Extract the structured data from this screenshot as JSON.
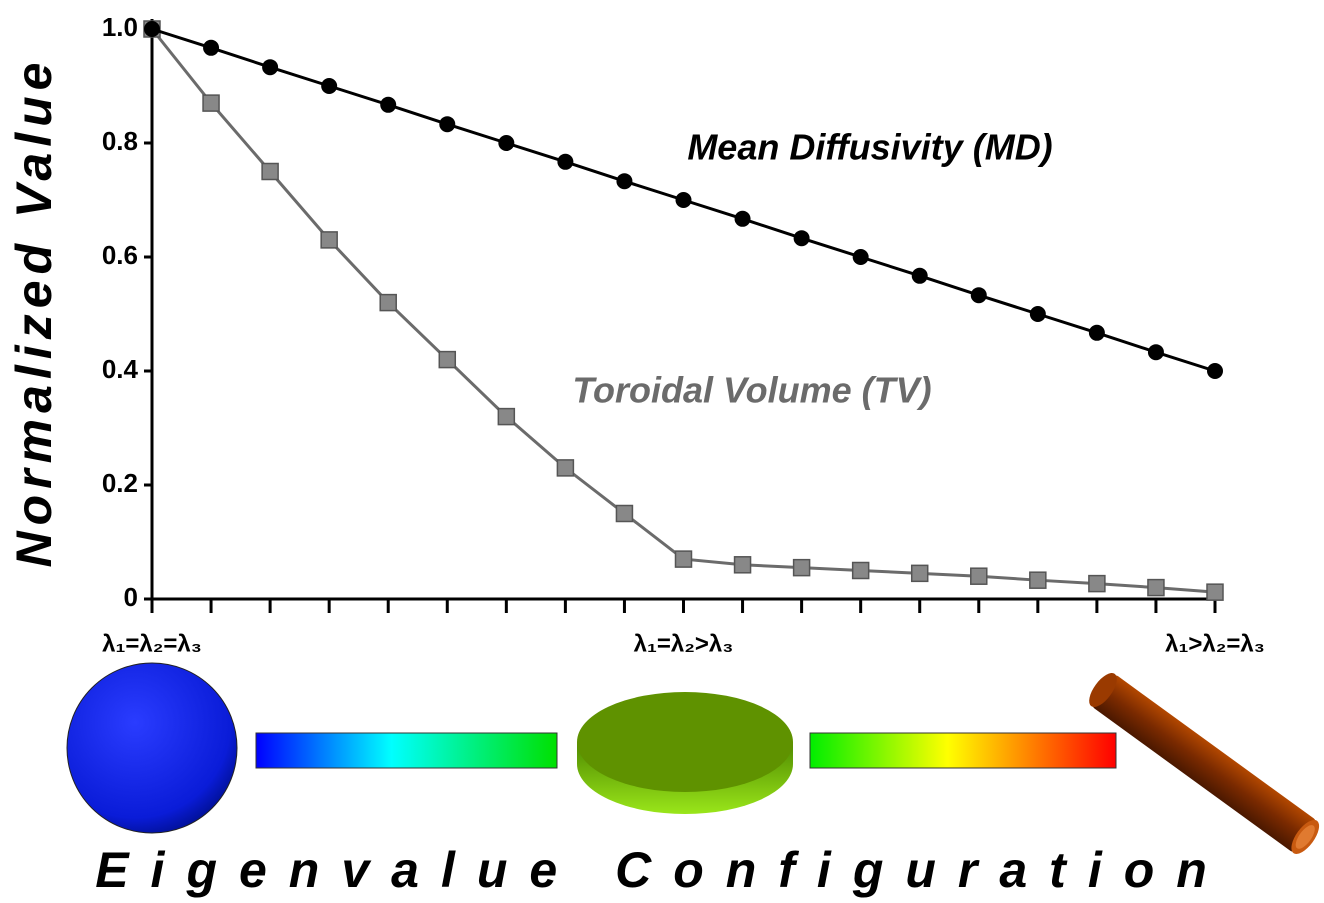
{
  "chart_data": {
    "type": "line",
    "y_label": "Normalized Value",
    "x_label": "Eigenvalue Configuration",
    "categories": [
      "λ₁=λ₂=λ₃",
      null,
      null,
      null,
      null,
      null,
      null,
      null,
      null,
      "λ₁=λ₂>λ₃",
      null,
      null,
      null,
      null,
      null,
      null,
      null,
      null,
      "λ₁>λ₂=λ₃"
    ],
    "series": [
      {
        "name": "Mean Diffusivity (MD)",
        "color": "#000000",
        "marker": "circle",
        "values": [
          1.0,
          0.967,
          0.933,
          0.9,
          0.867,
          0.833,
          0.8,
          0.767,
          0.733,
          0.7,
          0.667,
          0.633,
          0.6,
          0.567,
          0.533,
          0.5,
          0.467,
          0.433,
          0.4
        ]
      },
      {
        "name": "Toroidal Volume (TV)",
        "color": "#6b6b6b",
        "marker": "square",
        "values": [
          1.0,
          0.87,
          0.75,
          0.63,
          0.52,
          0.42,
          0.32,
          0.23,
          0.15,
          0.07,
          0.06,
          0.055,
          0.05,
          0.045,
          0.04,
          0.033,
          0.027,
          0.02,
          0.012
        ]
      }
    ],
    "ylim": [
      0,
      1
    ],
    "yticks": [
      0,
      0.2,
      0.4,
      0.6,
      0.8,
      {
        "value": 1,
        "label": "1.0"
      }
    ]
  }
}
